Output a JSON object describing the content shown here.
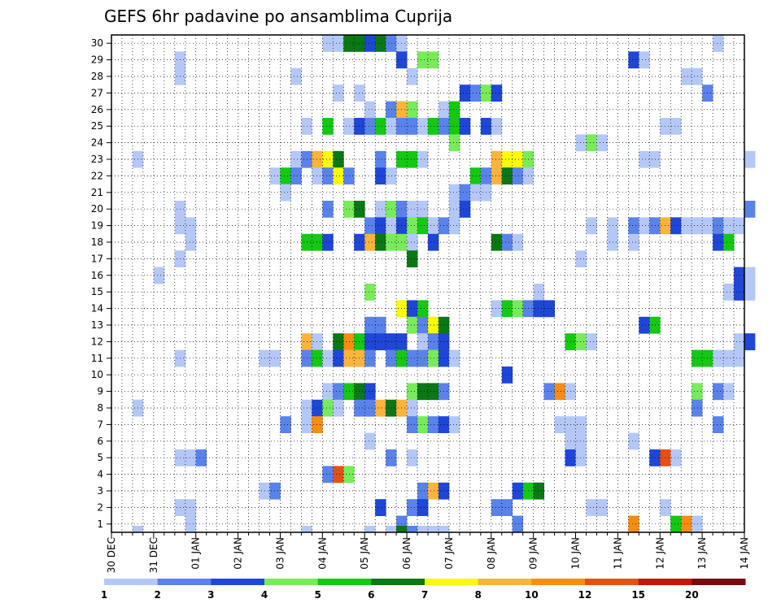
{
  "chart_data": {
    "type": "heatmap",
    "title": "GEFS 6hr padavine po ansamblima Cuprija",
    "xlabel": "",
    "ylabel": "",
    "x_tick_labels": [
      "30 DEC",
      "31 DEC",
      "01 JAN",
      "02 JAN",
      "03 JAN",
      "04 JAN",
      "05 JAN",
      "06 JAN",
      "07 JAN",
      "08 JAN",
      "09 JAN",
      "10 JAN",
      "11 JAN",
      "12 JAN",
      "13 JAN",
      "14 JAN"
    ],
    "y_tick_labels": [
      "1",
      "2",
      "3",
      "4",
      "5",
      "6",
      "7",
      "8",
      "9",
      "10",
      "11",
      "12",
      "13",
      "14",
      "15",
      "16",
      "17",
      "18",
      "19",
      "20",
      "21",
      "22",
      "23",
      "24",
      "25",
      "26",
      "27",
      "28",
      "29",
      "30"
    ],
    "x_range": [
      0,
      60
    ],
    "y_range": [
      0.5,
      30.5
    ],
    "grid": true,
    "legend_position": "bottom",
    "colorbar": {
      "labels": [
        "1",
        "2",
        "3",
        "4",
        "5",
        "6",
        "7",
        "8",
        "10",
        "12",
        "15",
        "20"
      ],
      "colors": [
        "#b4c8f8",
        "#5a82eb",
        "#1e46d7",
        "#78eb5a",
        "#14c814",
        "#0a7814",
        "#fafa0a",
        "#fab43c",
        "#f58c14",
        "#e65014",
        "#c8140a",
        "#780a0a"
      ]
    },
    "cells_note": "each cell: [time step index (6-hourly from 30 DEC 00z), ensemble member, color class index]",
    "cells": [
      [
        20,
        30,
        0
      ],
      [
        21,
        30,
        0
      ],
      [
        22,
        30,
        5
      ],
      [
        23,
        30,
        5
      ],
      [
        24,
        30,
        2
      ],
      [
        25,
        30,
        5
      ],
      [
        26,
        30,
        1
      ],
      [
        27,
        30,
        0
      ],
      [
        57,
        30,
        0
      ],
      [
        27,
        29,
        2
      ],
      [
        29,
        29,
        3
      ],
      [
        30,
        29,
        3
      ],
      [
        49,
        29,
        2
      ],
      [
        50,
        29,
        0
      ],
      [
        6,
        29,
        0
      ],
      [
        6,
        28,
        0
      ],
      [
        17,
        28,
        0
      ],
      [
        28,
        28,
        0
      ],
      [
        54,
        28,
        0
      ],
      [
        55,
        28,
        0
      ],
      [
        21,
        27,
        0
      ],
      [
        23,
        27,
        0
      ],
      [
        33,
        27,
        2
      ],
      [
        34,
        27,
        1
      ],
      [
        35,
        27,
        3
      ],
      [
        36,
        27,
        2
      ],
      [
        56,
        27,
        1
      ],
      [
        24,
        26,
        0
      ],
      [
        26,
        26,
        1
      ],
      [
        27,
        26,
        7
      ],
      [
        28,
        26,
        3
      ],
      [
        31,
        26,
        0
      ],
      [
        32,
        26,
        4
      ],
      [
        18,
        25,
        0
      ],
      [
        20,
        25,
        4
      ],
      [
        22,
        25,
        0
      ],
      [
        23,
        25,
        2
      ],
      [
        24,
        25,
        1
      ],
      [
        25,
        25,
        4
      ],
      [
        26,
        25,
        0
      ],
      [
        27,
        25,
        1
      ],
      [
        28,
        25,
        1
      ],
      [
        29,
        25,
        0
      ],
      [
        30,
        25,
        4
      ],
      [
        31,
        25,
        1
      ],
      [
        32,
        25,
        4
      ],
      [
        33,
        25,
        2
      ],
      [
        35,
        25,
        2
      ],
      [
        36,
        25,
        0
      ],
      [
        52,
        25,
        0
      ],
      [
        53,
        25,
        0
      ],
      [
        32,
        24,
        3
      ],
      [
        44,
        24,
        0
      ],
      [
        45,
        24,
        3
      ],
      [
        46,
        24,
        0
      ],
      [
        2,
        23,
        0
      ],
      [
        17,
        23,
        0
      ],
      [
        18,
        23,
        1
      ],
      [
        19,
        23,
        7
      ],
      [
        20,
        23,
        6
      ],
      [
        21,
        23,
        5
      ],
      [
        25,
        23,
        1
      ],
      [
        27,
        23,
        4
      ],
      [
        28,
        23,
        4
      ],
      [
        29,
        23,
        0
      ],
      [
        36,
        23,
        7
      ],
      [
        37,
        23,
        6
      ],
      [
        38,
        23,
        6
      ],
      [
        39,
        23,
        3
      ],
      [
        50,
        23,
        0
      ],
      [
        51,
        23,
        0
      ],
      [
        60,
        23,
        0
      ],
      [
        15,
        22,
        0
      ],
      [
        16,
        22,
        4
      ],
      [
        17,
        22,
        1
      ],
      [
        19,
        22,
        0
      ],
      [
        20,
        22,
        1
      ],
      [
        21,
        22,
        6
      ],
      [
        22,
        22,
        1
      ],
      [
        25,
        22,
        2
      ],
      [
        26,
        22,
        0
      ],
      [
        34,
        22,
        4
      ],
      [
        35,
        22,
        1
      ],
      [
        36,
        22,
        7
      ],
      [
        37,
        22,
        5
      ],
      [
        38,
        22,
        1
      ],
      [
        39,
        22,
        0
      ],
      [
        16,
        21,
        0
      ],
      [
        32,
        21,
        0
      ],
      [
        33,
        21,
        1
      ],
      [
        34,
        21,
        0
      ],
      [
        35,
        21,
        0
      ],
      [
        6,
        20,
        0
      ],
      [
        20,
        20,
        1
      ],
      [
        22,
        20,
        3
      ],
      [
        23,
        20,
        5
      ],
      [
        25,
        20,
        0
      ],
      [
        26,
        20,
        3
      ],
      [
        27,
        20,
        1
      ],
      [
        28,
        20,
        0
      ],
      [
        29,
        20,
        0
      ],
      [
        32,
        20,
        0
      ],
      [
        33,
        20,
        2
      ],
      [
        60,
        20,
        1
      ],
      [
        6,
        19,
        0
      ],
      [
        7,
        19,
        0
      ],
      [
        24,
        19,
        1
      ],
      [
        25,
        19,
        2
      ],
      [
        26,
        19,
        0
      ],
      [
        27,
        19,
        2
      ],
      [
        28,
        19,
        3
      ],
      [
        29,
        19,
        4
      ],
      [
        30,
        19,
        0
      ],
      [
        31,
        19,
        1
      ],
      [
        32,
        19,
        0
      ],
      [
        45,
        19,
        0
      ],
      [
        47,
        19,
        0
      ],
      [
        49,
        19,
        1
      ],
      [
        50,
        19,
        0
      ],
      [
        51,
        19,
        1
      ],
      [
        52,
        19,
        7
      ],
      [
        53,
        19,
        2
      ],
      [
        54,
        19,
        0
      ],
      [
        55,
        19,
        0
      ],
      [
        56,
        19,
        0
      ],
      [
        57,
        19,
        1
      ],
      [
        58,
        19,
        0
      ],
      [
        59,
        19,
        0
      ],
      [
        7,
        18,
        0
      ],
      [
        18,
        18,
        4
      ],
      [
        19,
        18,
        4
      ],
      [
        20,
        18,
        2
      ],
      [
        23,
        18,
        2
      ],
      [
        24,
        18,
        7
      ],
      [
        25,
        18,
        5
      ],
      [
        26,
        18,
        3
      ],
      [
        27,
        18,
        3
      ],
      [
        28,
        18,
        0
      ],
      [
        30,
        18,
        2
      ],
      [
        36,
        18,
        5
      ],
      [
        37,
        18,
        1
      ],
      [
        38,
        18,
        0
      ],
      [
        47,
        18,
        0
      ],
      [
        49,
        18,
        0
      ],
      [
        57,
        18,
        2
      ],
      [
        58,
        18,
        4
      ],
      [
        6,
        17,
        0
      ],
      [
        28,
        17,
        5
      ],
      [
        44,
        17,
        0
      ],
      [
        4,
        16,
        0
      ],
      [
        59,
        16,
        2
      ],
      [
        60,
        16,
        0
      ],
      [
        24,
        15,
        3
      ],
      [
        40,
        15,
        0
      ],
      [
        58,
        15,
        0
      ],
      [
        59,
        15,
        2
      ],
      [
        60,
        15,
        0
      ],
      [
        27,
        14,
        6
      ],
      [
        28,
        14,
        2
      ],
      [
        29,
        14,
        4
      ],
      [
        36,
        14,
        0
      ],
      [
        37,
        14,
        4
      ],
      [
        38,
        14,
        3
      ],
      [
        39,
        14,
        1
      ],
      [
        40,
        14,
        2
      ],
      [
        41,
        14,
        2
      ],
      [
        24,
        13,
        1
      ],
      [
        25,
        13,
        1
      ],
      [
        28,
        13,
        3
      ],
      [
        29,
        13,
        1
      ],
      [
        30,
        13,
        6
      ],
      [
        31,
        13,
        5
      ],
      [
        50,
        13,
        2
      ],
      [
        51,
        13,
        4
      ],
      [
        18,
        12,
        7
      ],
      [
        19,
        12,
        0
      ],
      [
        21,
        12,
        5
      ],
      [
        22,
        12,
        8
      ],
      [
        23,
        12,
        4
      ],
      [
        24,
        12,
        2
      ],
      [
        25,
        12,
        2
      ],
      [
        26,
        12,
        2
      ],
      [
        27,
        12,
        2
      ],
      [
        29,
        12,
        0
      ],
      [
        30,
        12,
        1
      ],
      [
        31,
        12,
        2
      ],
      [
        43,
        12,
        4
      ],
      [
        44,
        12,
        3
      ],
      [
        45,
        12,
        0
      ],
      [
        59,
        12,
        0
      ],
      [
        60,
        12,
        2
      ],
      [
        6,
        11,
        0
      ],
      [
        14,
        11,
        0
      ],
      [
        15,
        11,
        0
      ],
      [
        18,
        11,
        1
      ],
      [
        19,
        11,
        4
      ],
      [
        20,
        11,
        0
      ],
      [
        21,
        11,
        2
      ],
      [
        22,
        11,
        7
      ],
      [
        23,
        11,
        7
      ],
      [
        24,
        11,
        1
      ],
      [
        26,
        11,
        1
      ],
      [
        27,
        11,
        4
      ],
      [
        28,
        11,
        1
      ],
      [
        29,
        11,
        1
      ],
      [
        30,
        11,
        3
      ],
      [
        31,
        11,
        2
      ],
      [
        32,
        11,
        0
      ],
      [
        55,
        11,
        4
      ],
      [
        56,
        11,
        4
      ],
      [
        57,
        11,
        0
      ],
      [
        58,
        11,
        0
      ],
      [
        59,
        11,
        0
      ],
      [
        37,
        10,
        2
      ],
      [
        20,
        9,
        0
      ],
      [
        21,
        9,
        1
      ],
      [
        22,
        9,
        4
      ],
      [
        23,
        9,
        5
      ],
      [
        24,
        9,
        2
      ],
      [
        28,
        9,
        3
      ],
      [
        29,
        9,
        5
      ],
      [
        30,
        9,
        5
      ],
      [
        31,
        9,
        1
      ],
      [
        41,
        9,
        1
      ],
      [
        42,
        9,
        8
      ],
      [
        43,
        9,
        0
      ],
      [
        55,
        9,
        3
      ],
      [
        57,
        9,
        1
      ],
      [
        58,
        9,
        0
      ],
      [
        2,
        8,
        0
      ],
      [
        18,
        8,
        0
      ],
      [
        19,
        8,
        2
      ],
      [
        20,
        8,
        3
      ],
      [
        21,
        8,
        0
      ],
      [
        23,
        8,
        1
      ],
      [
        24,
        8,
        1
      ],
      [
        25,
        8,
        7
      ],
      [
        26,
        8,
        5
      ],
      [
        27,
        8,
        7
      ],
      [
        28,
        8,
        0
      ],
      [
        55,
        8,
        1
      ],
      [
        16,
        7,
        1
      ],
      [
        18,
        7,
        0
      ],
      [
        19,
        7,
        8
      ],
      [
        28,
        7,
        1
      ],
      [
        29,
        7,
        3
      ],
      [
        30,
        7,
        1
      ],
      [
        31,
        7,
        2
      ],
      [
        32,
        7,
        0
      ],
      [
        42,
        7,
        0
      ],
      [
        43,
        7,
        0
      ],
      [
        44,
        7,
        0
      ],
      [
        57,
        7,
        1
      ],
      [
        24,
        6,
        0
      ],
      [
        43,
        6,
        0
      ],
      [
        44,
        6,
        0
      ],
      [
        49,
        6,
        0
      ],
      [
        6,
        5,
        0
      ],
      [
        7,
        5,
        0
      ],
      [
        8,
        5,
        1
      ],
      [
        26,
        5,
        1
      ],
      [
        28,
        5,
        0
      ],
      [
        43,
        5,
        2
      ],
      [
        44,
        5,
        0
      ],
      [
        51,
        5,
        2
      ],
      [
        52,
        5,
        9
      ],
      [
        53,
        5,
        0
      ],
      [
        20,
        4,
        1
      ],
      [
        21,
        4,
        9
      ],
      [
        22,
        4,
        3
      ],
      [
        14,
        3,
        0
      ],
      [
        15,
        3,
        1
      ],
      [
        29,
        3,
        1
      ],
      [
        30,
        3,
        7
      ],
      [
        31,
        3,
        2
      ],
      [
        38,
        3,
        2
      ],
      [
        39,
        3,
        4
      ],
      [
        40,
        3,
        5
      ],
      [
        6,
        2,
        0
      ],
      [
        7,
        2,
        0
      ],
      [
        25,
        2,
        2
      ],
      [
        28,
        2,
        1
      ],
      [
        29,
        2,
        2
      ],
      [
        36,
        2,
        1
      ],
      [
        37,
        2,
        1
      ],
      [
        45,
        2,
        0
      ],
      [
        46,
        2,
        0
      ],
      [
        52,
        2,
        0
      ],
      [
        7,
        1,
        0
      ],
      [
        27,
        1,
        1
      ],
      [
        38,
        1,
        1
      ],
      [
        49,
        1,
        8
      ],
      [
        53,
        1,
        4
      ],
      [
        54,
        1,
        8
      ],
      [
        55,
        1,
        0
      ]
    ],
    "bottom_strip_cells": [
      [
        2,
        0
      ],
      [
        7,
        0
      ],
      [
        18,
        0
      ],
      [
        24,
        0
      ],
      [
        26,
        0
      ],
      [
        27,
        5
      ],
      [
        28,
        1
      ],
      [
        29,
        0
      ],
      [
        30,
        0
      ],
      [
        31,
        0
      ]
    ]
  }
}
